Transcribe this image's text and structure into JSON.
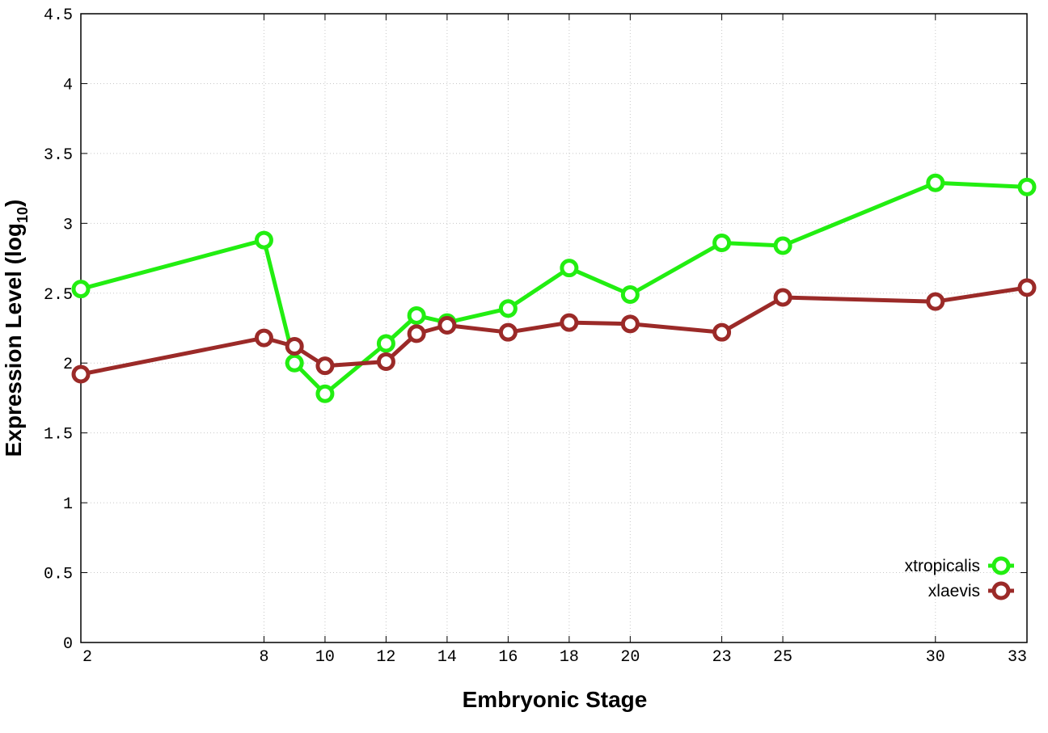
{
  "chart_data": {
    "type": "line",
    "xlabel": "Embryonic Stage",
    "ylabel_main": "Expression Level (log",
    "ylabel_sub": "10",
    "ylabel_close": ")",
    "xlim": [
      2,
      33
    ],
    "ylim": [
      0,
      4.5
    ],
    "x_ticks": [
      2,
      8,
      10,
      12,
      14,
      16,
      18,
      20,
      23,
      25,
      30,
      33
    ],
    "y_ticks": [
      "0",
      "0.5",
      "1",
      "1.5",
      "2",
      "2.5",
      "3",
      "3.5",
      "4",
      "4.5"
    ],
    "grid": true,
    "legend_position": "bottom-right",
    "series": [
      {
        "name": "xtropicalis",
        "color": "#22ee11",
        "x": [
          2,
          8,
          9,
          10,
          12,
          13,
          14,
          16,
          18,
          20,
          23,
          25,
          30,
          33
        ],
        "y": [
          2.53,
          2.88,
          2.0,
          1.78,
          2.14,
          2.34,
          2.29,
          2.39,
          2.68,
          2.49,
          2.86,
          2.84,
          3.29,
          3.26
        ]
      },
      {
        "name": "xlaevis",
        "color": "#9b2a28",
        "x": [
          2,
          8,
          9,
          10,
          12,
          13,
          14,
          16,
          18,
          20,
          23,
          25,
          30,
          33
        ],
        "y": [
          1.92,
          2.18,
          2.12,
          1.98,
          2.01,
          2.21,
          2.27,
          2.22,
          2.29,
          2.28,
          2.22,
          2.47,
          2.44,
          2.54
        ]
      }
    ]
  }
}
